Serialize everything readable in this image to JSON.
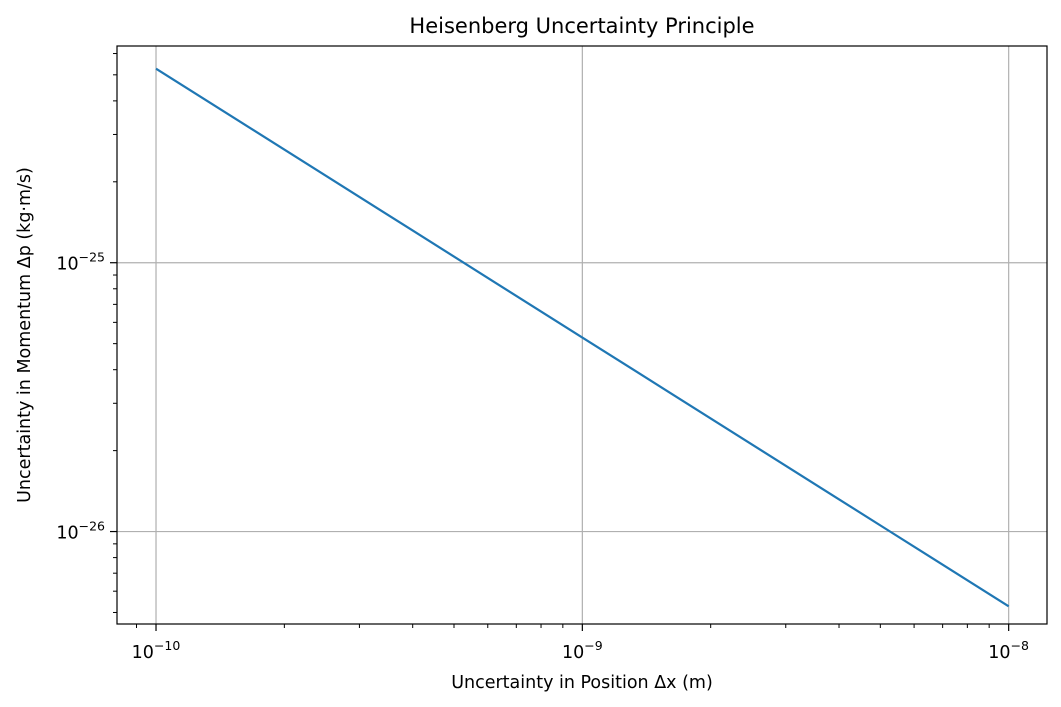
{
  "chart_data": {
    "type": "line",
    "title": "Heisenberg Uncertainty Principle",
    "xlabel": "Uncertainty in Position Δx (m)",
    "ylabel": "Uncertainty in Momentum Δp (kg·m/s)",
    "x_scale": "log",
    "y_scale": "log",
    "xlim": [
      8.1e-11,
      1.23e-08
    ],
    "ylim": [
      4.53e-27,
      6.4e-25
    ],
    "grid": true,
    "line_color": "#1f77b4",
    "x_ticks": [
      {
        "value": 1e-10,
        "base": "10",
        "exp": "−10"
      },
      {
        "value": 1e-09,
        "base": "10",
        "exp": "−9"
      },
      {
        "value": 1e-08,
        "base": "10",
        "exp": "−8"
      }
    ],
    "y_ticks": [
      {
        "value": 1e-26,
        "base": "10",
        "exp": "−26"
      },
      {
        "value": 1e-25,
        "base": "10",
        "exp": "−25"
      }
    ],
    "series": [
      {
        "x": [
          1e-10,
          1.585e-10,
          2.512e-10,
          3.981e-10,
          6.31e-10,
          1e-09,
          1.585e-09,
          2.512e-09,
          3.981e-09,
          6.31e-09,
          1e-08
        ],
        "y": [
          5.27e-25,
          3.325e-25,
          2.098e-25,
          1.324e-25,
          8.35e-26,
          5.27e-26,
          3.325e-26,
          2.098e-26,
          1.324e-26,
          8.35e-27,
          5.27e-27
        ]
      }
    ]
  }
}
